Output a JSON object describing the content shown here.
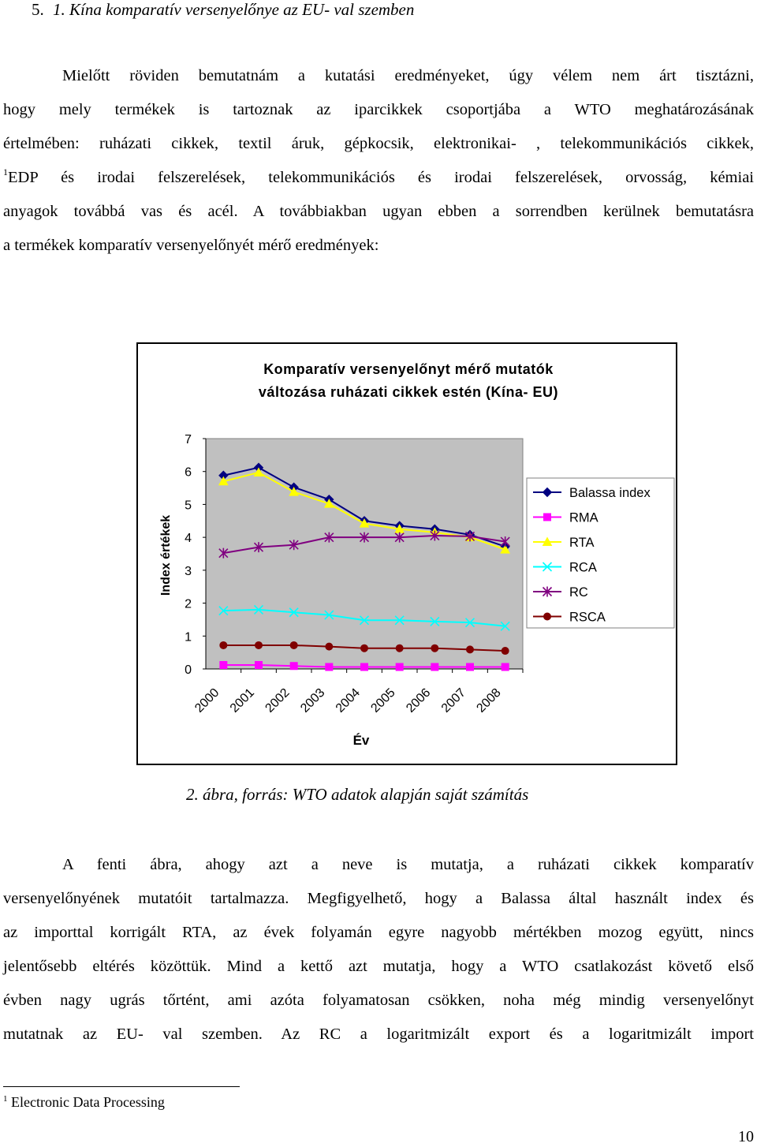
{
  "heading": {
    "number": "5.",
    "title": "1. Kína komparatív versenyelőnye az EU- val szemben"
  },
  "intro": {
    "lines": [
      "Mielőtt röviden bemutatnám a kutatási eredményeket, úgy vélem nem árt tisztázni,",
      "hogy mely termékek is tartoznak az iparcikkek csoportjába a WTO meghatározásának",
      "értelmében: ruházati cikkek, textil áruk, gépkocsik, elektronikai- , telekommunikációs cikkek,",
      "EDP és irodai felszerelések, telekommunikációs és irodai felszerelések, orvosság, kémiai",
      "anyagok továbbá vas és acél. A továbbiakban ugyan ebben a sorrendben kerülnek bemutatásra",
      "a termékek komparatív versenyelőnyét mérő eredmények:"
    ],
    "footnote_ref": "1"
  },
  "chart_data": {
    "type": "line",
    "title_line1": "Komparatív versenyelőnyt mérő mutatók",
    "title_line2": "változása ruházati cikkek estén (Kína- EU)",
    "xlabel": "Év",
    "ylabel": "Index értékek",
    "ylim": [
      0,
      7
    ],
    "yticks": [
      "0",
      "1",
      "2",
      "3",
      "4",
      "5",
      "6",
      "7"
    ],
    "categories": [
      "2000",
      "2001",
      "2002",
      "2003",
      "2004",
      "2005",
      "2006",
      "2007",
      "2008"
    ],
    "legend_position": "right",
    "series": [
      {
        "name": "Balassa index",
        "marker": "diamond",
        "color": "#000080",
        "values": [
          5.88,
          6.12,
          5.52,
          5.15,
          4.5,
          4.35,
          4.25,
          4.08,
          3.72
        ]
      },
      {
        "name": "RMA",
        "marker": "square",
        "color": "#ff00ff",
        "values": [
          0.12,
          0.12,
          0.09,
          0.06,
          0.06,
          0.06,
          0.06,
          0.06,
          0.06
        ]
      },
      {
        "name": "RTA",
        "marker": "triangle",
        "color": "#ffff00",
        "values": [
          5.7,
          5.97,
          5.38,
          5.02,
          4.42,
          4.25,
          4.15,
          4.0,
          3.63
        ]
      },
      {
        "name": "RCA",
        "marker": "x",
        "color": "#00ffff",
        "values": [
          1.77,
          1.8,
          1.72,
          1.64,
          1.48,
          1.48,
          1.44,
          1.41,
          1.3
        ]
      },
      {
        "name": "RC",
        "marker": "star",
        "color": "#800080",
        "values": [
          3.52,
          3.7,
          3.77,
          4.0,
          4.0,
          4.0,
          4.05,
          4.03,
          3.87
        ]
      },
      {
        "name": "RSCA",
        "marker": "circle",
        "color": "#800000",
        "values": [
          0.72,
          0.72,
          0.72,
          0.68,
          0.63,
          0.63,
          0.63,
          0.59,
          0.55
        ]
      }
    ]
  },
  "caption": "2. ábra, forrás: WTO adatok alapján saját számítás",
  "body": {
    "lines": [
      "A fenti ábra, ahogy azt a neve is mutatja, a ruházati cikkek komparatív",
      "versenyelőnyének mutatóit tartalmazza. Megfigyelhető, hogy a Balassa által használt index és",
      "az importtal korrigált RTA, az évek folyamán egyre nagyobb mértékben mozog együtt, nincs",
      "jelentősebb eltérés közöttük. Mind a kettő azt mutatja, hogy a WTO csatlakozást követő első",
      "évben nagy ugrás tőrtént, ami azóta folyamatosan csökken, noha még mindig versenyelőnyt",
      "mutatnak az EU- val szemben. Az RC a logaritmizált export és a logaritmizált import"
    ]
  },
  "footnote": {
    "ref": "1",
    "text": "Electronic Data Processing"
  },
  "page_number": "10"
}
